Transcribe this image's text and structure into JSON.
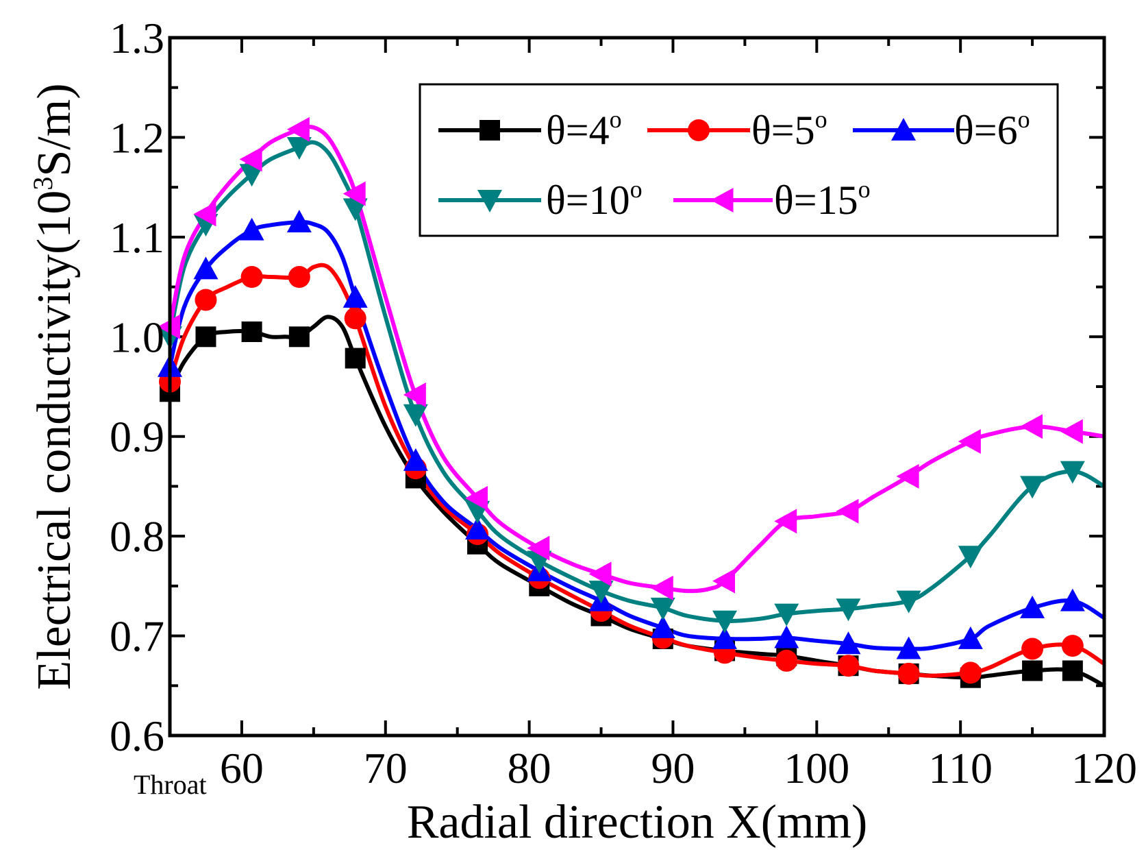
{
  "chart_data": {
    "type": "line",
    "title": "",
    "xlabel": "Radial direction X(mm)",
    "ylabel_parts": [
      "Electrical conductivity(10",
      "3",
      "S/m)"
    ],
    "xlim": [
      55,
      120
    ],
    "ylim": [
      0.6,
      1.3
    ],
    "x_ticks": [
      60,
      70,
      80,
      90,
      100,
      110,
      120
    ],
    "y_ticks": [
      0.6,
      0.7,
      0.8,
      0.9,
      1.0,
      1.1,
      1.2,
      1.3
    ],
    "y_tick_labels": [
      "0.6",
      "0.7",
      "0.8",
      "0.9",
      "1.0",
      "1.1",
      "1.2",
      "1.3"
    ],
    "x_annotation": "Throat",
    "legend_position": "top-right",
    "series": [
      {
        "name": "θ=4°",
        "label": "θ=4",
        "sup": "o",
        "color": "#000000",
        "marker": "square",
        "x": [
          55,
          56,
          57.5,
          59,
          60.7,
          62,
          63,
          64,
          65,
          66,
          67,
          68,
          70,
          72,
          74,
          76.4,
          78,
          80.7,
          83,
          85,
          87,
          89.3,
          91,
          93.6,
          96,
          97.9,
          100,
          102.2,
          104,
          106.4,
          108,
          110.7,
          112,
          115,
          117.8,
          120
        ],
        "y": [
          0.945,
          0.975,
          1.0,
          1.005,
          1.005,
          1.0,
          1.0,
          1.0,
          1.01,
          1.02,
          1.01,
          0.975,
          0.91,
          0.86,
          0.825,
          0.792,
          0.772,
          0.75,
          0.732,
          0.72,
          0.707,
          0.697,
          0.69,
          0.685,
          0.682,
          0.68,
          0.675,
          0.67,
          0.665,
          0.662,
          0.66,
          0.658,
          0.66,
          0.665,
          0.665,
          0.65
        ],
        "marker_x": [
          55,
          57.5,
          60.7,
          64,
          67.9,
          72.1,
          76.4,
          80.7,
          85,
          89.3,
          93.6,
          97.9,
          102.2,
          106.4,
          110.7,
          115,
          117.8
        ]
      },
      {
        "name": "θ=5°",
        "label": "θ=5",
        "sup": "o",
        "color": "#ff0000",
        "marker": "circle",
        "x": [
          55,
          56,
          57.5,
          59,
          60.7,
          62,
          64,
          65,
          66,
          67,
          68,
          70,
          72,
          74,
          76.4,
          78,
          80.7,
          83,
          85,
          87,
          89.3,
          91,
          93.6,
          96,
          97.9,
          100,
          102.2,
          104,
          106.4,
          108,
          110.7,
          112,
          115,
          117.8,
          120
        ],
        "y": [
          0.955,
          1.0,
          1.037,
          1.05,
          1.06,
          1.06,
          1.06,
          1.07,
          1.07,
          1.05,
          1.015,
          0.93,
          0.87,
          0.83,
          0.802,
          0.782,
          0.758,
          0.74,
          0.725,
          0.71,
          0.698,
          0.69,
          0.683,
          0.678,
          0.675,
          0.672,
          0.67,
          0.665,
          0.662,
          0.66,
          0.663,
          0.668,
          0.687,
          0.69,
          0.672
        ],
        "marker_x": [
          55,
          57.5,
          60.7,
          64,
          67.9,
          72.1,
          76.4,
          80.7,
          85,
          89.3,
          93.6,
          97.9,
          102.2,
          106.4,
          110.7,
          115,
          117.8
        ]
      },
      {
        "name": "θ=6°",
        "label": "θ=6",
        "sup": "o",
        "color": "#0000ff",
        "marker": "triangle-up",
        "x": [
          55,
          56,
          57.5,
          59,
          60.7,
          62,
          64,
          65,
          66,
          67,
          68,
          70,
          72,
          74,
          76.4,
          78,
          80.7,
          83,
          85,
          87,
          89.3,
          91,
          93.6,
          96,
          97.9,
          100,
          102.2,
          104,
          106.4,
          108,
          110.7,
          112,
          115,
          117.8,
          120
        ],
        "y": [
          0.97,
          1.03,
          1.068,
          1.09,
          1.107,
          1.112,
          1.115,
          1.113,
          1.105,
          1.08,
          1.035,
          0.95,
          0.878,
          0.835,
          0.807,
          0.788,
          0.765,
          0.748,
          0.735,
          0.72,
          0.708,
          0.7,
          0.697,
          0.697,
          0.698,
          0.695,
          0.692,
          0.688,
          0.687,
          0.688,
          0.697,
          0.71,
          0.728,
          0.735,
          0.718
        ],
        "marker_x": [
          55,
          57.5,
          60.7,
          64,
          67.9,
          72.1,
          76.4,
          80.7,
          85,
          89.3,
          93.6,
          97.9,
          102.2,
          106.4,
          110.7,
          115,
          117.8
        ]
      },
      {
        "name": "θ=10°",
        "label": "θ=10",
        "sup": "o",
        "color": "#008080",
        "marker": "triangle-down",
        "x": [
          55,
          56,
          57.5,
          59,
          60.7,
          62,
          64,
          65,
          66,
          67,
          68,
          70,
          72,
          74,
          76.4,
          78,
          80.7,
          83,
          85,
          87,
          89.3,
          91,
          93.6,
          96,
          97.9,
          100,
          102.2,
          104,
          106.4,
          108,
          110.7,
          112,
          115,
          117.8,
          120
        ],
        "y": [
          1.0,
          1.07,
          1.113,
          1.14,
          1.163,
          1.178,
          1.19,
          1.195,
          1.185,
          1.16,
          1.125,
          1.02,
          0.925,
          0.865,
          0.825,
          0.8,
          0.775,
          0.758,
          0.745,
          0.735,
          0.728,
          0.72,
          0.715,
          0.717,
          0.722,
          0.725,
          0.727,
          0.73,
          0.735,
          0.748,
          0.78,
          0.8,
          0.85,
          0.865,
          0.85
        ],
        "marker_x": [
          55,
          57.5,
          60.7,
          64,
          67.9,
          72.1,
          76.4,
          80.7,
          85,
          89.3,
          93.6,
          97.9,
          102.2,
          106.4,
          110.7,
          115,
          117.8
        ]
      },
      {
        "name": "θ=15°",
        "label": "θ=15",
        "sup": "o",
        "color": "#ff00ff",
        "marker": "triangle-left",
        "x": [
          55,
          56,
          57.5,
          59,
          60.7,
          62,
          64,
          65,
          66,
          67,
          68,
          70,
          72,
          74,
          76.4,
          78,
          80.7,
          83,
          85,
          87,
          89.3,
          91,
          92.5,
          93.6,
          96,
          97.9,
          100,
          102.2,
          104,
          106.4,
          108,
          110.7,
          112,
          115,
          117.8,
          120
        ],
        "y": [
          1.01,
          1.08,
          1.123,
          1.152,
          1.178,
          1.195,
          1.208,
          1.21,
          1.2,
          1.175,
          1.14,
          1.04,
          0.945,
          0.88,
          0.838,
          0.813,
          0.788,
          0.772,
          0.762,
          0.753,
          0.748,
          0.745,
          0.747,
          0.755,
          0.79,
          0.815,
          0.82,
          0.825,
          0.84,
          0.86,
          0.875,
          0.895,
          0.902,
          0.91,
          0.905,
          0.9
        ],
        "marker_x": [
          55,
          57.5,
          60.7,
          64,
          67.9,
          72.1,
          76.4,
          80.7,
          85,
          89.3,
          93.6,
          97.9,
          102.2,
          106.4,
          110.7,
          115,
          117.8
        ]
      }
    ]
  }
}
